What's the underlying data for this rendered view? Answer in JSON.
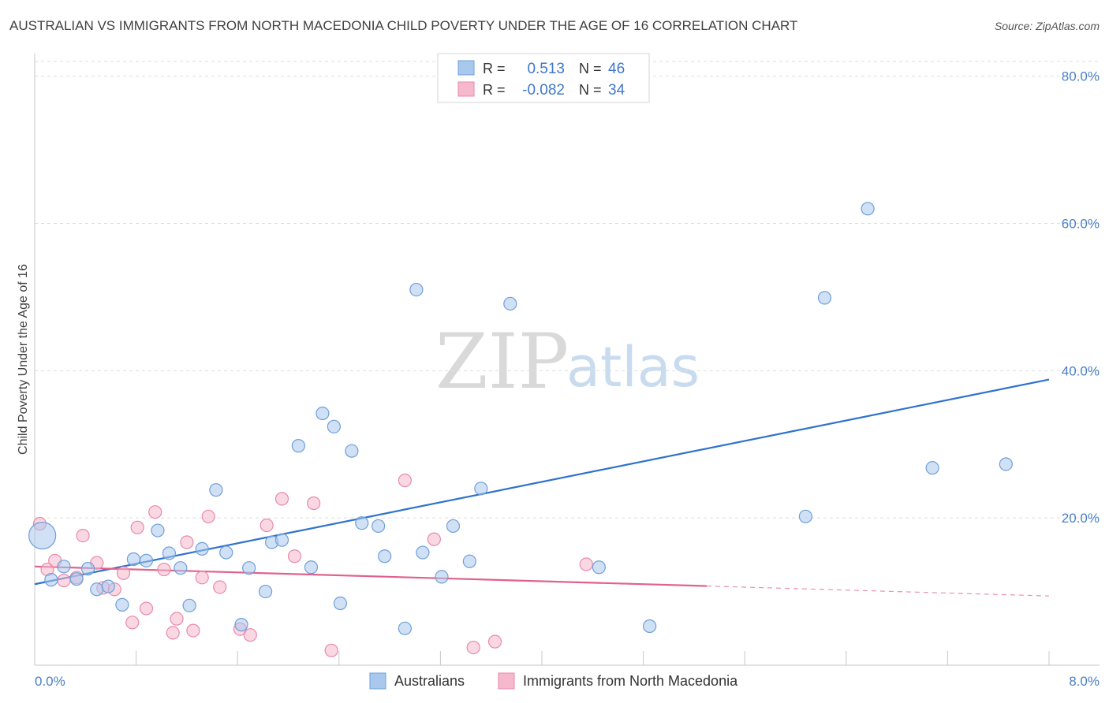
{
  "chart_data": {
    "type": "scatter",
    "title": "AUSTRALIAN VS IMMIGRANTS FROM NORTH MACEDONIA CHILD POVERTY UNDER THE AGE OF 16 CORRELATION CHART",
    "source": "Source: ZipAtlas.com",
    "ylabel": "Child Poverty Under the Age of 16",
    "xlim": [
      0,
      8
    ],
    "ylim": [
      0,
      82
    ],
    "x_tick_labels": [
      "0.0%",
      "8.0%"
    ],
    "y_tick_values": [
      20,
      40,
      60,
      80
    ],
    "y_tick_labels": [
      "20.0%",
      "40.0%",
      "60.0%",
      "80.0%"
    ],
    "watermark": {
      "zip": "ZIP",
      "atlas": "atlas"
    },
    "legend": {
      "r_label": "R =",
      "n_label": "N =",
      "rows": [
        {
          "r": "0.513",
          "n": "46",
          "color": "#a9c8ee"
        },
        {
          "r": "-0.082",
          "n": "34",
          "color": "#f5b8cc"
        }
      ]
    },
    "series": [
      {
        "name": "Australians",
        "color": "#a9c8ee",
        "edge": "#6f9fd8",
        "line_color": "#2f72cc",
        "trend": {
          "x0": 0,
          "y0": 11.0,
          "x1": 8,
          "y1": 38.8,
          "solid_until": 8
        },
        "points": [
          [
            0.06,
            17.6
          ],
          [
            0.13,
            11.6
          ],
          [
            0.23,
            13.4
          ],
          [
            0.33,
            11.7
          ],
          [
            0.42,
            13.1
          ],
          [
            0.49,
            10.3
          ],
          [
            0.58,
            10.7
          ],
          [
            0.69,
            8.2
          ],
          [
            0.78,
            14.4
          ],
          [
            0.88,
            14.2
          ],
          [
            0.97,
            18.3
          ],
          [
            1.06,
            15.2
          ],
          [
            1.15,
            13.2
          ],
          [
            1.22,
            8.1
          ],
          [
            1.32,
            15.8
          ],
          [
            1.43,
            23.8
          ],
          [
            1.51,
            15.3
          ],
          [
            1.63,
            5.5
          ],
          [
            1.69,
            13.2
          ],
          [
            1.82,
            10.0
          ],
          [
            1.87,
            16.7
          ],
          [
            1.95,
            17.0
          ],
          [
            2.08,
            29.8
          ],
          [
            2.18,
            13.3
          ],
          [
            2.27,
            34.2
          ],
          [
            2.36,
            32.4
          ],
          [
            2.41,
            8.4
          ],
          [
            2.5,
            29.1
          ],
          [
            2.58,
            19.3
          ],
          [
            2.71,
            18.9
          ],
          [
            2.76,
            14.8
          ],
          [
            2.92,
            5.0
          ],
          [
            3.01,
            51.0
          ],
          [
            3.06,
            15.3
          ],
          [
            3.21,
            12.0
          ],
          [
            3.3,
            18.9
          ],
          [
            3.43,
            14.1
          ],
          [
            3.52,
            24.0
          ],
          [
            3.75,
            49.1
          ],
          [
            4.45,
            13.3
          ],
          [
            4.85,
            5.3
          ],
          [
            6.08,
            20.2
          ],
          [
            6.23,
            49.9
          ],
          [
            6.57,
            62.0
          ],
          [
            7.08,
            26.8
          ],
          [
            7.66,
            27.3
          ]
        ]
      },
      {
        "name": "Immigrants from North Macedonia",
        "color": "#f5b8cc",
        "edge": "#e88aa8",
        "line_color": "#e0628c",
        "trend": {
          "x0": 0,
          "y0": 13.4,
          "x1": 8,
          "y1": 9.4,
          "solid_until": 5.3
        },
        "points": [
          [
            0.04,
            19.2
          ],
          [
            0.1,
            13.0
          ],
          [
            0.16,
            14.2
          ],
          [
            0.23,
            11.5
          ],
          [
            0.33,
            11.9
          ],
          [
            0.38,
            17.6
          ],
          [
            0.49,
            13.9
          ],
          [
            0.54,
            10.5
          ],
          [
            0.63,
            10.3
          ],
          [
            0.7,
            12.5
          ],
          [
            0.77,
            5.8
          ],
          [
            0.81,
            18.7
          ],
          [
            0.88,
            7.7
          ],
          [
            0.95,
            20.8
          ],
          [
            1.02,
            13.0
          ],
          [
            1.09,
            4.4
          ],
          [
            1.12,
            6.3
          ],
          [
            1.2,
            16.7
          ],
          [
            1.25,
            4.7
          ],
          [
            1.32,
            11.9
          ],
          [
            1.37,
            20.2
          ],
          [
            1.46,
            10.6
          ],
          [
            1.62,
            4.9
          ],
          [
            1.7,
            4.1
          ],
          [
            1.83,
            19.0
          ],
          [
            1.95,
            22.6
          ],
          [
            2.05,
            14.8
          ],
          [
            2.2,
            22.0
          ],
          [
            2.34,
            2.0
          ],
          [
            2.92,
            25.1
          ],
          [
            3.15,
            17.1
          ],
          [
            3.46,
            2.4
          ],
          [
            3.63,
            3.2
          ],
          [
            4.35,
            13.7
          ]
        ]
      }
    ]
  },
  "bottom_legend": [
    {
      "label": "Australians",
      "color": "#a9c8ee"
    },
    {
      "label": "Immigrants from North Macedonia",
      "color": "#f5b8cc"
    }
  ]
}
